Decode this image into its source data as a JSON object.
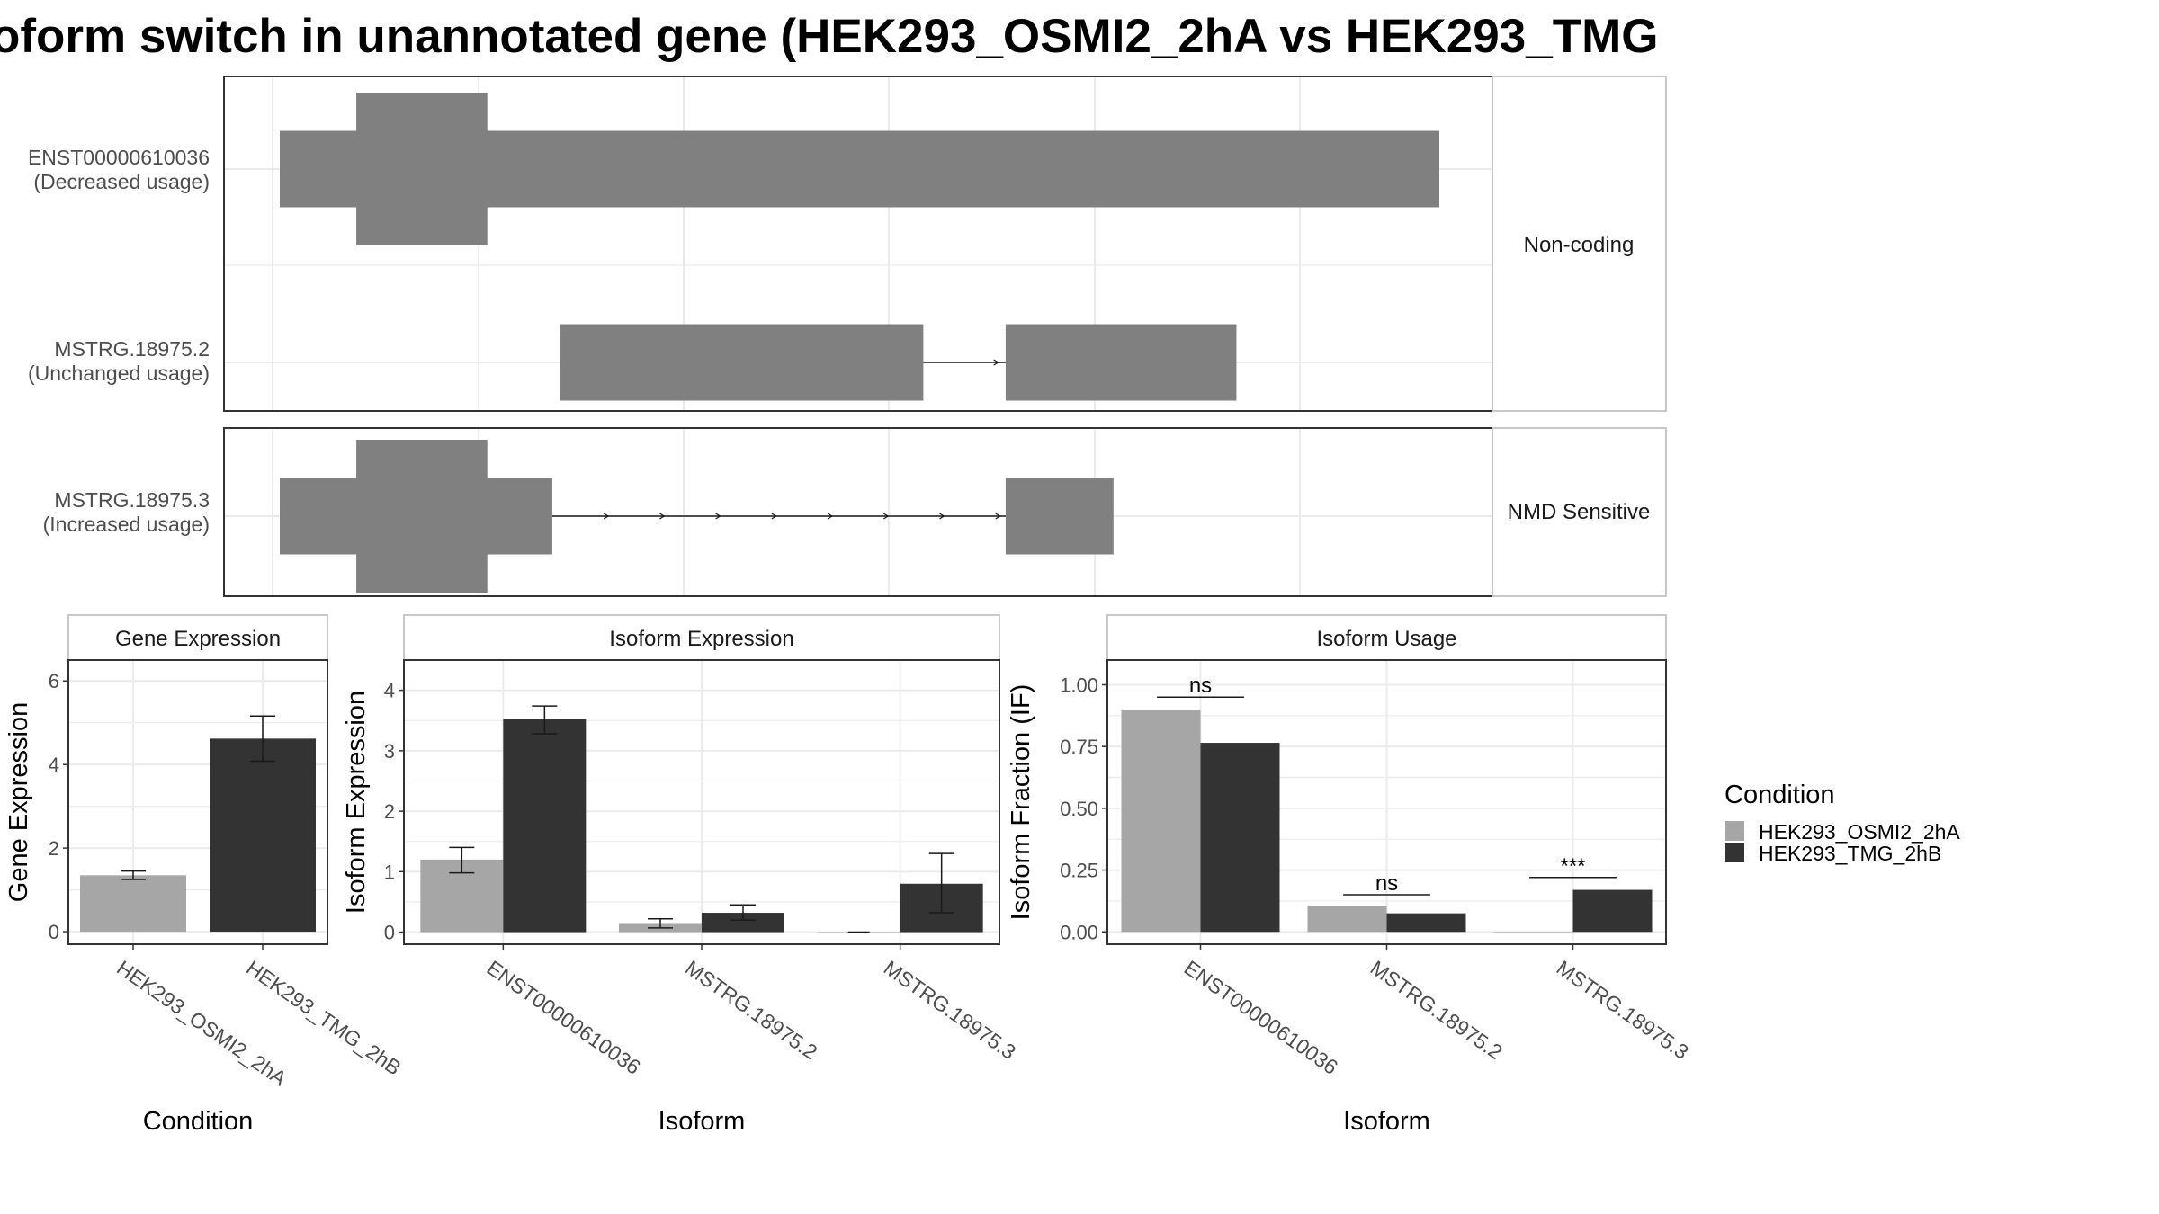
{
  "title": "oform switch in unannotated gene (HEK293_OSMI2_2hA vs HEK293_TMG",
  "colors": {
    "exon": "#808080",
    "intron": "#1a1a1a",
    "grid": "#ebebeb",
    "condition_a": "#a6a6a6",
    "condition_b": "#333333",
    "panel_border": "#333333",
    "strip_border": "#c8c8c8",
    "axis_text": "#4d4d4d"
  },
  "structure": {
    "transcripts": [
      {
        "id": "ENST00000610036",
        "usage": "(Decreased usage)",
        "group": "Non-coding",
        "track": 0,
        "exons": [
          {
            "start": 0.0,
            "end": 1.0,
            "coding": false
          },
          {
            "start": 0.066,
            "end": 0.179,
            "coding": true
          }
        ],
        "introns": []
      },
      {
        "id": "MSTRG.18975.2",
        "usage": "(Unchanged usage)",
        "group": "Non-coding",
        "track": 1,
        "exons": [
          {
            "start": 0.242,
            "end": 0.555,
            "coding": false
          },
          {
            "start": 0.626,
            "end": 0.825,
            "coding": false
          }
        ],
        "introns": [
          {
            "start": 0.555,
            "end": 0.626
          }
        ]
      },
      {
        "id": "MSTRG.18975.3",
        "usage": "(Increased usage)",
        "group": "NMD Sensitive",
        "track": 0,
        "exons": [
          {
            "start": 0.0,
            "end": 0.235,
            "coding": false
          },
          {
            "start": 0.066,
            "end": 0.179,
            "coding": true
          },
          {
            "start": 0.626,
            "end": 0.719,
            "coding": false
          }
        ],
        "introns": [
          {
            "start": 0.235,
            "end": 0.626
          }
        ]
      }
    ],
    "facets": [
      "Non-coding",
      "NMD Sensitive"
    ]
  },
  "chart_data": [
    {
      "type": "bar",
      "title": "Gene Expression",
      "xlabel": "Condition",
      "ylabel": "Gene Expression",
      "categories": [
        "HEK293_OSMI2_2hA",
        "HEK293_TMG_2hB"
      ],
      "values": [
        1.35,
        4.62
      ],
      "error_low": [
        1.25,
        4.08
      ],
      "error_high": [
        1.45,
        5.16
      ],
      "ylim": [
        -0.3,
        6.5
      ],
      "yticks": [
        0,
        2,
        4,
        6
      ],
      "ytick_labels": [
        "0",
        "2",
        "4",
        "6"
      ]
    },
    {
      "type": "bar",
      "title": "Isoform Expression",
      "xlabel": "Isoform",
      "ylabel": "Isoform Expression",
      "categories": [
        "ENST00000610036",
        "MSTRG.18975.2",
        "MSTRG.18975.3"
      ],
      "series": [
        {
          "name": "HEK293_OSMI2_2hA",
          "values": [
            1.2,
            0.15,
            0.0
          ],
          "error_low": [
            0.98,
            0.07,
            0.0
          ],
          "error_high": [
            1.4,
            0.22,
            0.0
          ]
        },
        {
          "name": "HEK293_TMG_2hB",
          "values": [
            3.52,
            0.32,
            0.8
          ],
          "error_low": [
            3.28,
            0.2,
            0.32
          ],
          "error_high": [
            3.74,
            0.45,
            1.3
          ]
        }
      ],
      "ylim": [
        -0.2,
        4.5
      ],
      "yticks": [
        0,
        1,
        2,
        3,
        4
      ],
      "ytick_labels": [
        "0",
        "1",
        "2",
        "3",
        "4"
      ]
    },
    {
      "type": "bar",
      "title": "Isoform Usage",
      "xlabel": "Isoform",
      "ylabel": "Isoform Fraction (IF)",
      "categories": [
        "ENST00000610036",
        "MSTRG.18975.2",
        "MSTRG.18975.3"
      ],
      "series": [
        {
          "name": "HEK293_OSMI2_2hA",
          "values": [
            0.9,
            0.105,
            0.0
          ]
        },
        {
          "name": "HEK293_TMG_2hB",
          "values": [
            0.765,
            0.075,
            0.17
          ]
        }
      ],
      "significance": [
        "ns",
        "ns",
        "***"
      ],
      "significance_y": [
        0.95,
        0.15,
        0.22
      ],
      "ylim": [
        -0.05,
        1.1
      ],
      "yticks": [
        0,
        0.25,
        0.5,
        0.75,
        1.0
      ],
      "ytick_labels": [
        "0.00",
        "0.25",
        "0.50",
        "0.75",
        "1.00"
      ]
    }
  ],
  "legend": {
    "title": "Condition",
    "entries": [
      "HEK293_OSMI2_2hA",
      "HEK293_TMG_2hB"
    ]
  }
}
